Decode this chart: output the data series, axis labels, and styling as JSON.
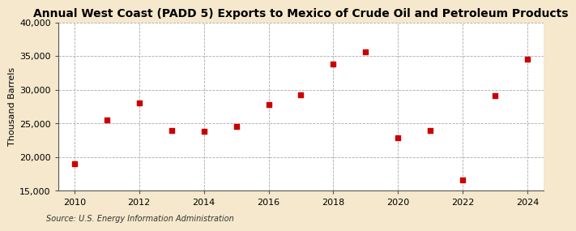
{
  "title": "Annual West Coast (PADD 5) Exports to Mexico of Crude Oil and Petroleum Products",
  "ylabel": "Thousand Barrels",
  "source": "Source: U.S. Energy Information Administration",
  "fig_background_color": "#f5e8cc",
  "plot_background_color": "#ffffff",
  "grid_color": "#aaaaaa",
  "point_color": "#cc0000",
  "years": [
    2010,
    2011,
    2012,
    2013,
    2014,
    2015,
    2016,
    2017,
    2018,
    2019,
    2020,
    2021,
    2022,
    2023,
    2024
  ],
  "values": [
    19000,
    25500,
    28000,
    24000,
    23800,
    24500,
    27800,
    29300,
    33800,
    35600,
    22800,
    24000,
    16600,
    29100,
    34500
  ],
  "ylim": [
    15000,
    40000
  ],
  "yticks": [
    15000,
    20000,
    25000,
    30000,
    35000,
    40000
  ],
  "xlim": [
    2009.5,
    2024.5
  ],
  "xticks": [
    2010,
    2012,
    2014,
    2016,
    2018,
    2020,
    2022,
    2024
  ],
  "title_fontsize": 10,
  "ylabel_fontsize": 8,
  "tick_fontsize": 8,
  "source_fontsize": 7
}
